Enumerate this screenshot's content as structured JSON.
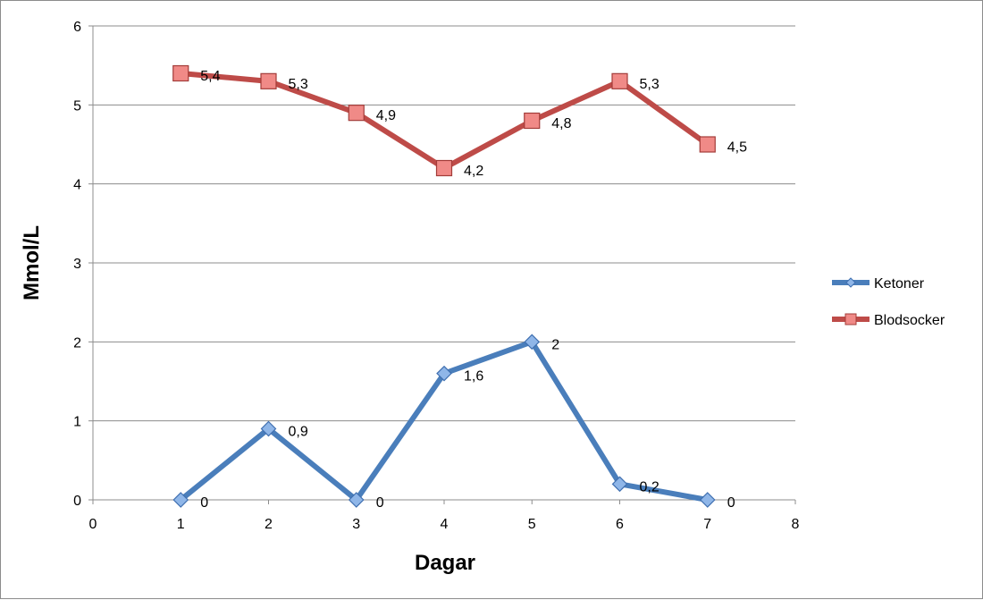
{
  "chart_data": {
    "type": "line",
    "title": "",
    "xlabel": "Dagar",
    "ylabel": "Mmol/L",
    "xlim": [
      0,
      8
    ],
    "ylim": [
      0,
      6
    ],
    "x_ticks": [
      "0",
      "1",
      "2",
      "3",
      "4",
      "5",
      "6",
      "7",
      "8"
    ],
    "y_ticks": [
      "0",
      "1",
      "2",
      "3",
      "4",
      "5",
      "6"
    ],
    "grid": true,
    "legend_position": "right",
    "series": [
      {
        "name": "Ketoner",
        "color": "#4a7ebb",
        "marker": "diamond",
        "x": [
          1,
          2,
          3,
          4,
          5,
          6,
          7
        ],
        "y": [
          0,
          0.9,
          0,
          1.6,
          2,
          0.2,
          0
        ],
        "labels": [
          "0",
          "0,9",
          "0",
          "1,6",
          "2",
          "0,2",
          "0"
        ]
      },
      {
        "name": "Blodsocker",
        "color": "#be4b48",
        "marker": "square",
        "x": [
          1,
          2,
          3,
          4,
          5,
          6,
          7
        ],
        "y": [
          5.4,
          5.3,
          4.9,
          4.2,
          4.8,
          5.3,
          4.5
        ],
        "labels": [
          "5,4",
          "5,3",
          "4,9",
          "4,2",
          "4,8",
          "5,3",
          "4,5"
        ]
      }
    ]
  }
}
